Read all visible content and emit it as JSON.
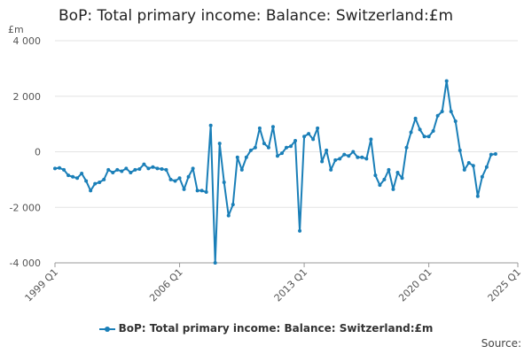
{
  "chart_data": {
    "type": "line",
    "title": "BoP: Total primary income: Balance: Switzerland:£m",
    "unit_label": "£m",
    "ylim": [
      -4000,
      4000
    ],
    "yticks": [
      4000,
      2000,
      0,
      -2000,
      -4000
    ],
    "ytick_labels": [
      "4 000",
      "2 000",
      "0",
      "-2 000",
      "-4 000"
    ],
    "x_start": "1999 Q1",
    "xticks": [
      "1999 Q1",
      "2006 Q1",
      "2013 Q1",
      "2020 Q1",
      "2025 Q1"
    ],
    "grid": true,
    "legend_position": "bottom",
    "series": [
      {
        "name": "BoP: Total primary income: Balance: Switzerland:£m",
        "color": "#1a7fb8",
        "values": [
          -600,
          -580,
          -650,
          -850,
          -900,
          -950,
          -780,
          -1050,
          -1400,
          -1150,
          -1100,
          -1000,
          -650,
          -750,
          -650,
          -700,
          -600,
          -750,
          -650,
          -620,
          -450,
          -600,
          -550,
          -600,
          -620,
          -650,
          -1000,
          -1050,
          -950,
          -1350,
          -900,
          -600,
          -1400,
          -1400,
          -1450,
          950,
          -4000,
          300,
          -1100,
          -2300,
          -1900,
          -200,
          -650,
          -200,
          50,
          150,
          850,
          300,
          150,
          900,
          -150,
          -50,
          150,
          200,
          400,
          -2850,
          550,
          650,
          450,
          850,
          -350,
          50,
          -650,
          -300,
          -250,
          -100,
          -150,
          0,
          -200,
          -200,
          -250,
          450,
          -850,
          -1200,
          -1000,
          -650,
          -1350,
          -750,
          -950,
          150,
          700,
          1200,
          800,
          550,
          550,
          750,
          1300,
          1450,
          2550,
          1450,
          1100,
          50,
          -650,
          -400,
          -500,
          -1600,
          -900,
          -550,
          -100,
          -80
        ]
      }
    ]
  },
  "legend": {
    "label": "BoP: Total primary income: Balance: Switzerland:£m"
  },
  "source_label": "Source:"
}
